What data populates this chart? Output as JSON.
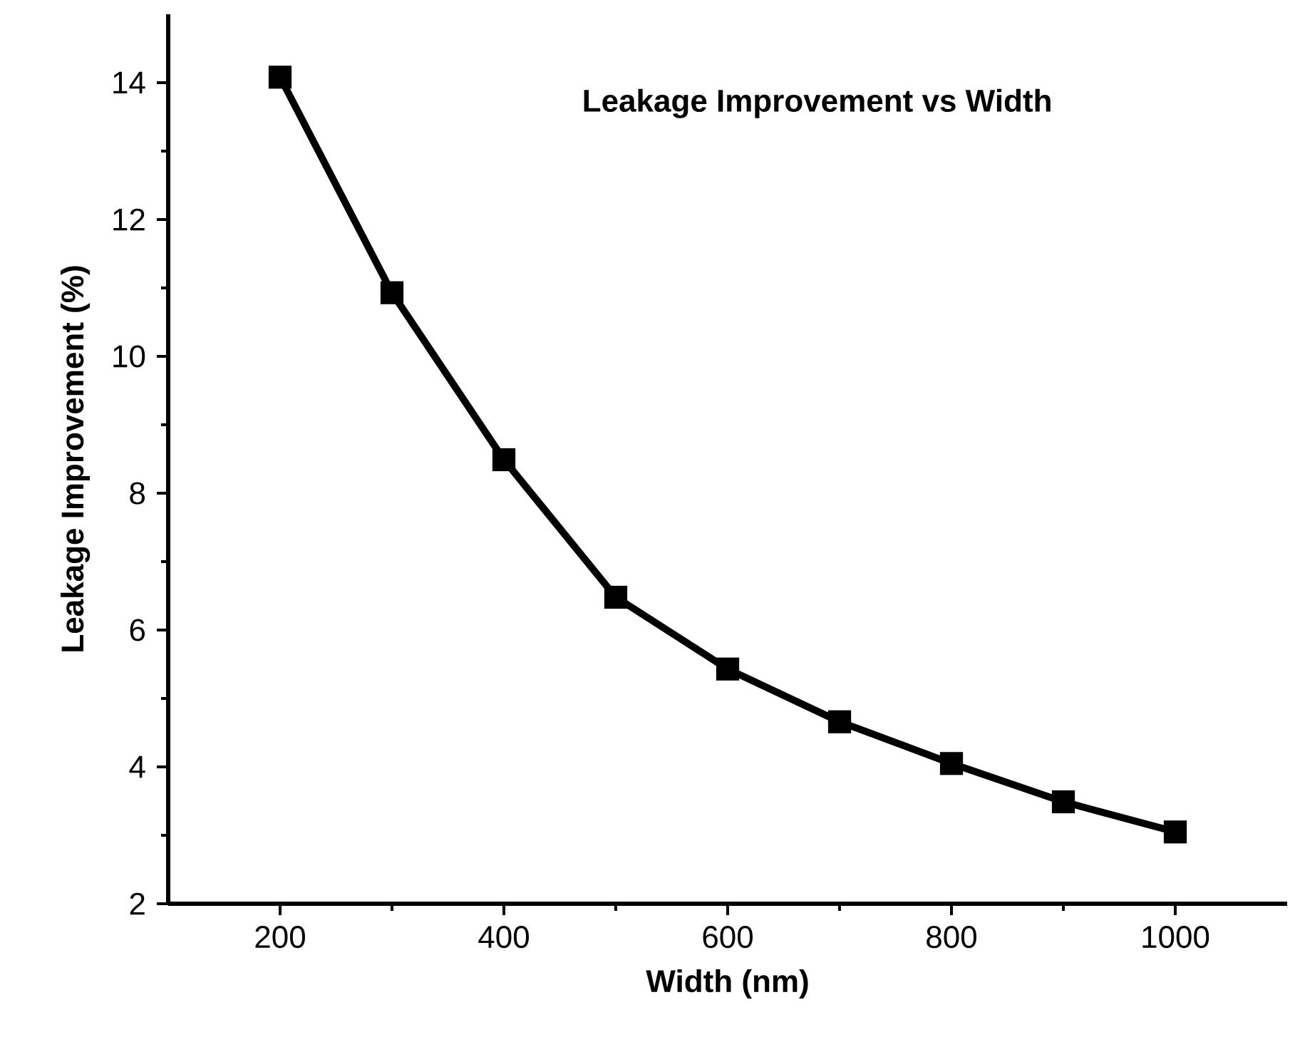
{
  "chart_data": {
    "type": "line",
    "title": "Leakage Improvement vs Width",
    "xlabel": "Width (nm)",
    "ylabel": "Leakage Improvement (%)",
    "x": [
      200,
      300,
      400,
      500,
      600,
      700,
      800,
      900,
      1000
    ],
    "series": [
      {
        "color": "#000000",
        "values": [
          14.08,
          10.93,
          8.49,
          6.48,
          5.43,
          4.66,
          4.05,
          3.49,
          3.05
        ]
      }
    ],
    "xlim": [
      100,
      1100
    ],
    "ylim": [
      2,
      15
    ],
    "xticks": [
      200,
      400,
      600,
      800,
      1000
    ],
    "yticks": [
      2,
      4,
      6,
      8,
      10,
      12,
      14
    ],
    "marker": "square",
    "line_style": "solid",
    "grid": false,
    "legend": false
  }
}
